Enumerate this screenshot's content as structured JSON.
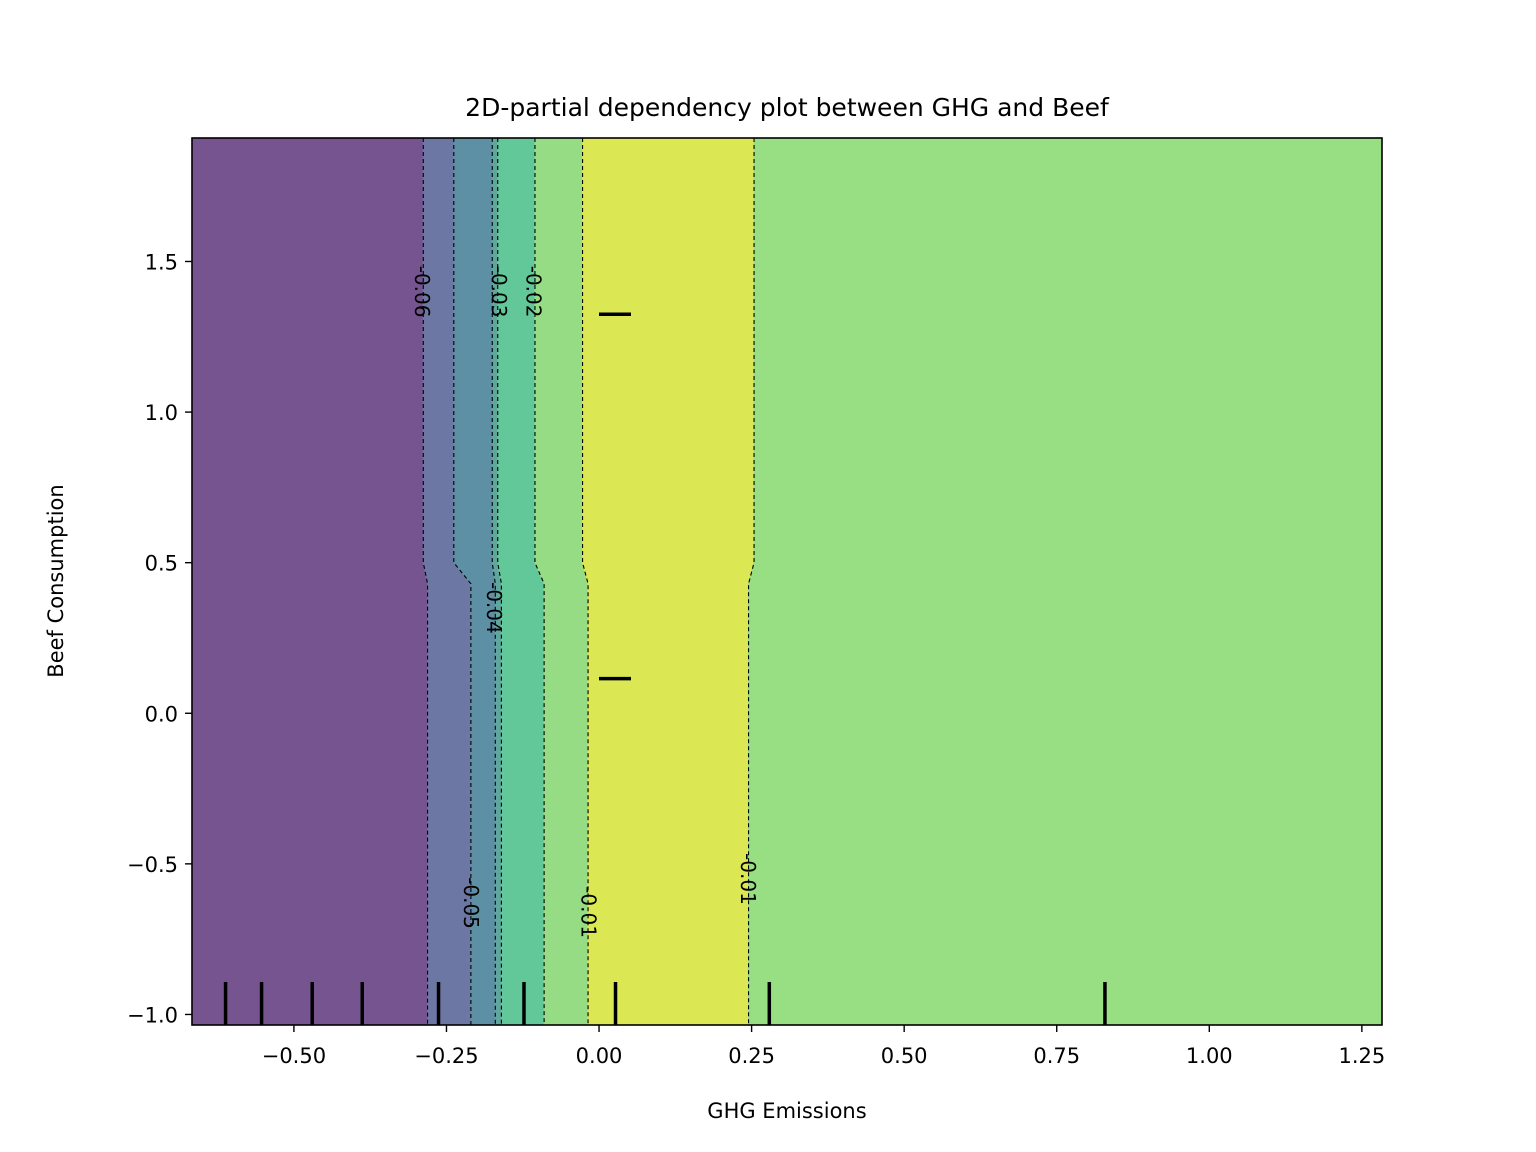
{
  "chart_data": {
    "type": "heatmap",
    "subtype": "contour",
    "title": "2D-partial dependency plot between GHG and Beef",
    "xlabel": "GHG Emissions",
    "ylabel": "Beef Consumption",
    "xlim": [
      -0.667,
      1.283
    ],
    "ylim": [
      -1.035,
      1.91
    ],
    "x_ticks": [
      {
        "value": -0.5,
        "label": "−0.50"
      },
      {
        "value": -0.25,
        "label": "−0.25"
      },
      {
        "value": 0.0,
        "label": "0.00"
      },
      {
        "value": 0.25,
        "label": "0.25"
      },
      {
        "value": 0.5,
        "label": "0.50"
      },
      {
        "value": 0.75,
        "label": "0.75"
      },
      {
        "value": 1.0,
        "label": "1.00"
      },
      {
        "value": 1.25,
        "label": "1.25"
      }
    ],
    "y_ticks": [
      {
        "value": -1.0,
        "label": "−1.0"
      },
      {
        "value": -0.5,
        "label": "−0.5"
      },
      {
        "value": 0.0,
        "label": "0.0"
      },
      {
        "value": 0.5,
        "label": "0.5"
      },
      {
        "value": 1.0,
        "label": "1.0"
      },
      {
        "value": 1.5,
        "label": "1.5"
      }
    ],
    "grid": false,
    "legend": "none",
    "regions": [
      {
        "value": -0.065,
        "color": "#765490",
        "top_x": [
          -0.667,
          -0.288
        ],
        "bottom_x": [
          -0.667,
          -0.281
        ]
      },
      {
        "value": -0.055,
        "color": "#6d77a3",
        "top_x": [
          -0.288,
          -0.238
        ],
        "bottom_x": [
          -0.281,
          -0.21
        ]
      },
      {
        "value": -0.045,
        "color": "#5d90a5",
        "top_x": [
          -0.238,
          -0.175
        ],
        "bottom_x": [
          -0.21,
          -0.17
        ]
      },
      {
        "value": -0.035,
        "color": "#5ea69e",
        "top_x": [
          -0.175,
          -0.166
        ],
        "bottom_x": [
          -0.17,
          -0.16
        ]
      },
      {
        "value": -0.025,
        "color": "#62c89a",
        "top_x": [
          -0.166,
          -0.105
        ],
        "bottom_x": [
          -0.16,
          -0.09
        ]
      },
      {
        "value": -0.015,
        "color": "#96dc84",
        "top_x": [
          -0.105,
          -0.027
        ],
        "bottom_x": [
          -0.09,
          -0.018
        ]
      },
      {
        "value": -0.005,
        "color": "#dbe853",
        "top_x": [
          -0.027,
          0.254
        ],
        "bottom_x": [
          -0.018,
          0.245
        ]
      },
      {
        "value": -0.015,
        "color": "#98de82",
        "top_x": [
          0.254,
          1.283
        ],
        "bottom_x": [
          0.245,
          1.283
        ]
      }
    ],
    "contour_lines": [
      {
        "level": "-0.06",
        "top_x": -0.288,
        "bottom_x": -0.281
      },
      {
        "level": "-0.05",
        "top_x": -0.238,
        "bottom_x": -0.21
      },
      {
        "level": "-0.04",
        "top_x": -0.175,
        "bottom_x": -0.17
      },
      {
        "level": "-0.03",
        "top_x": -0.166,
        "bottom_x": -0.16
      },
      {
        "level": "-0.02",
        "top_x": -0.105,
        "bottom_x": -0.09
      },
      {
        "level": "-0.01",
        "top_x": -0.027,
        "bottom_x": -0.018
      },
      {
        "level": "-0.01",
        "top_x": 0.254,
        "bottom_x": 0.245
      }
    ],
    "contour_labels": [
      {
        "text": "-0.06",
        "x": -0.29,
        "y": 1.4
      },
      {
        "text": "-0.03",
        "x": -0.164,
        "y": 1.4
      },
      {
        "text": "-0.02",
        "x": -0.107,
        "y": 1.4
      },
      {
        "text": "-0.04",
        "x": -0.172,
        "y": 0.35
      },
      {
        "text": "-0.05",
        "x": -0.21,
        "y": -0.63
      },
      {
        "text": "-0.01",
        "x": -0.017,
        "y": -0.66
      },
      {
        "text": "-0.01",
        "x": 0.244,
        "y": -0.55
      }
    ],
    "rug_x": [
      -0.612,
      -0.553,
      -0.47,
      -0.388,
      -0.263,
      -0.123,
      0.027,
      0.279,
      0.829
    ],
    "rug_y": [
      1.325,
      0.115
    ]
  }
}
